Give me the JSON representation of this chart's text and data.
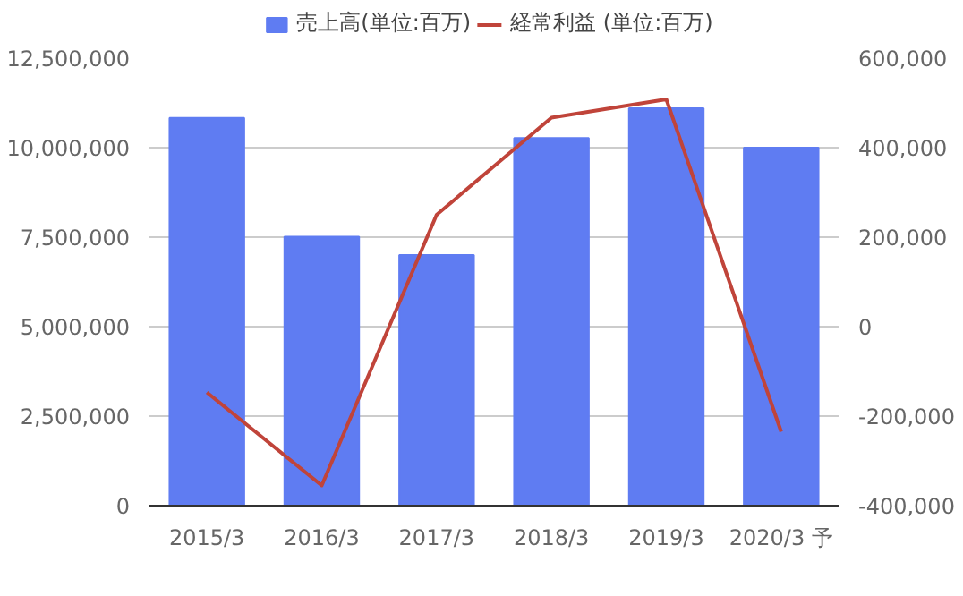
{
  "chart_data": {
    "type": "bar",
    "categories": [
      "2015/3",
      "2016/3",
      "2017/3",
      "2018/3",
      "2019/3",
      "2020/3 予"
    ],
    "series": [
      {
        "name": "売上高(単位:百万)",
        "color": "#5f7cf2",
        "values": [
          10830000,
          7510000,
          7000000,
          10270000,
          11100000,
          10000000
        ]
      },
      {
        "name": "経常利益 (単位:百万)",
        "color": "#c0443a",
        "type": "line",
        "axis": "y2",
        "values": [
          -147000,
          -355000,
          250000,
          467000,
          508000,
          -235000
        ]
      }
    ],
    "ylim": [
      0,
      12500000
    ],
    "yticks": [
      {
        "value": 0,
        "label": "0"
      },
      {
        "value": 2500000,
        "label": "2,500,000"
      },
      {
        "value": 5000000,
        "label": "5,000,000"
      },
      {
        "value": 7500000,
        "label": "7,500,000"
      },
      {
        "value": 10000000,
        "label": "10,000,000"
      },
      {
        "value": 12500000,
        "label": "12,500,000"
      }
    ],
    "y2lim": [
      -400000,
      600000
    ],
    "y2ticks": [
      {
        "value": -400000,
        "label": "-400,000"
      },
      {
        "value": -200000,
        "label": "-200,000"
      },
      {
        "value": 0,
        "label": "0"
      },
      {
        "value": 200000,
        "label": "200,000"
      },
      {
        "value": 400000,
        "label": "400,000"
      },
      {
        "value": 600000,
        "label": "600,000"
      }
    ],
    "grid": "y",
    "legend": "top"
  }
}
